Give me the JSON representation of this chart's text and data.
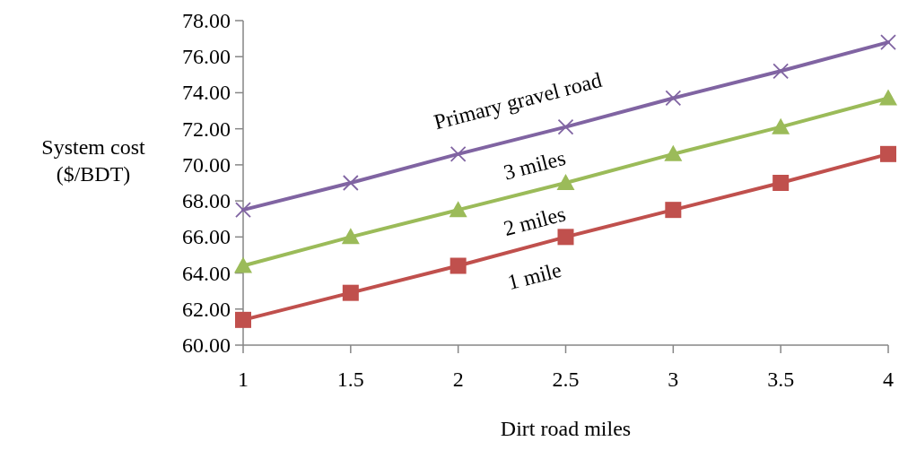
{
  "chart_data": {
    "type": "line",
    "xlabel": "Dirt road miles",
    "ylabel": "System cost ($/BDT)",
    "x": [
      1,
      1.5,
      2,
      2.5,
      3,
      3.5,
      4
    ],
    "xlim": [
      1,
      4
    ],
    "xticks": [
      1,
      1.5,
      2,
      2.5,
      3,
      3.5,
      4
    ],
    "ylim": [
      60,
      78
    ],
    "yticks": [
      {
        "value": 60,
        "label": "60.00"
      },
      {
        "value": 62,
        "label": "62.00"
      },
      {
        "value": 64,
        "label": "64.00"
      },
      {
        "value": 66,
        "label": "66.00"
      },
      {
        "value": 68,
        "label": "68.00"
      },
      {
        "value": 70,
        "label": "70.00"
      },
      {
        "value": 72,
        "label": "72.00"
      },
      {
        "value": 74,
        "label": "74.00"
      },
      {
        "value": 76,
        "label": "76.00"
      },
      {
        "value": 78,
        "label": "78.00"
      }
    ],
    "grid": false,
    "annotations": [
      "Primary gravel road"
    ],
    "series": [
      {
        "name": "1 mile",
        "color": "#c0504d",
        "marker": "square",
        "values": [
          61.4,
          62.9,
          64.4,
          66.0,
          67.5,
          69.0,
          70.6
        ]
      },
      {
        "name": "2 miles",
        "color": "#9bbb59",
        "marker": "triangle",
        "values": [
          64.4,
          66.0,
          67.5,
          69.0,
          70.6,
          72.1,
          73.7
        ]
      },
      {
        "name": "3 miles",
        "color": "#8064a2",
        "marker": "cross",
        "values": [
          67.5,
          69.0,
          70.6,
          72.1,
          73.7,
          75.2,
          76.8
        ]
      }
    ]
  }
}
